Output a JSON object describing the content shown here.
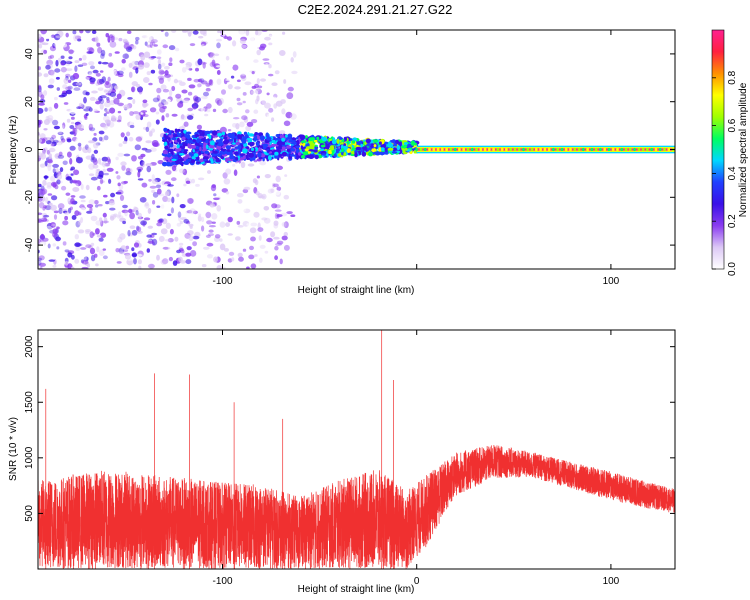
{
  "title": "C2E2.2024.291.21.27.G22",
  "chart_data": [
    {
      "type": "heatmap",
      "xlabel": "Height of straight line (km)",
      "ylabel": "Frequency (Hz)",
      "xlim": [
        -195,
        133
      ],
      "ylim": [
        -50,
        50
      ],
      "x_ticks": [
        -100,
        0,
        100
      ],
      "x_tick_labels": [
        "-100",
        "",
        "100"
      ],
      "y_ticks": [
        -40,
        -20,
        0,
        20,
        40
      ],
      "y_tick_labels": [
        "-40",
        "-20",
        "0",
        "20",
        "40"
      ],
      "colorbar": {
        "label": "Normalized spectral amplitude",
        "range": [
          0,
          1
        ],
        "ticks": [
          0.0,
          0.2,
          0.4,
          0.6,
          0.8
        ],
        "tick_labels": [
          "0.0",
          "0.2",
          "0.4",
          "0.6",
          "0.8"
        ],
        "colors": [
          "#ffffff",
          "#dcc8f5",
          "#8a3cf0",
          "#3a10e8",
          "#2040ff",
          "#00d8ff",
          "#00ff60",
          "#a0ff00",
          "#ffff00",
          "#ff9000",
          "#ff2040",
          "#ff2090"
        ]
      },
      "features": {
        "broadband_scatter_x_range": [
          -195,
          -62
        ],
        "narrow_band_center_hz": 0,
        "narrow_band_strong_from_km": 0
      }
    },
    {
      "type": "line",
      "xlabel": "Height of straight line (km)",
      "ylabel": "SNR (10 * v/v)",
      "xlim": [
        -195,
        133
      ],
      "ylim": [
        0,
        2150
      ],
      "x_ticks": [
        -100,
        0,
        100
      ],
      "x_tick_labels": [
        "-100",
        "0",
        "100"
      ],
      "y_ticks": [
        500,
        1000,
        1500,
        2000
      ],
      "y_tick_labels": [
        "500",
        "1000",
        "1500",
        "2000"
      ],
      "color": "#f03030",
      "envelope": [
        {
          "x": -195,
          "low": 0,
          "high": 800
        },
        {
          "x": -160,
          "low": 0,
          "high": 900
        },
        {
          "x": -120,
          "low": 0,
          "high": 820
        },
        {
          "x": -100,
          "low": 0,
          "high": 780
        },
        {
          "x": -80,
          "low": 0,
          "high": 760
        },
        {
          "x": -60,
          "low": 0,
          "high": 650
        },
        {
          "x": -40,
          "low": 0,
          "high": 800
        },
        {
          "x": -20,
          "low": 0,
          "high": 900
        },
        {
          "x": -5,
          "low": 0,
          "high": 700
        },
        {
          "x": 5,
          "low": 200,
          "high": 850
        },
        {
          "x": 20,
          "low": 650,
          "high": 1050
        },
        {
          "x": 40,
          "low": 820,
          "high": 1120
        },
        {
          "x": 60,
          "low": 820,
          "high": 1050
        },
        {
          "x": 80,
          "low": 720,
          "high": 960
        },
        {
          "x": 100,
          "low": 620,
          "high": 880
        },
        {
          "x": 120,
          "low": 540,
          "high": 780
        },
        {
          "x": 133,
          "low": 500,
          "high": 720
        }
      ],
      "spikes": [
        {
          "x": -191,
          "y": 1620
        },
        {
          "x": -135,
          "y": 1760
        },
        {
          "x": -117,
          "y": 1750
        },
        {
          "x": -94,
          "y": 1500
        },
        {
          "x": -69,
          "y": 1350
        },
        {
          "x": -18,
          "y": 2150
        },
        {
          "x": -12,
          "y": 1700
        }
      ]
    }
  ]
}
